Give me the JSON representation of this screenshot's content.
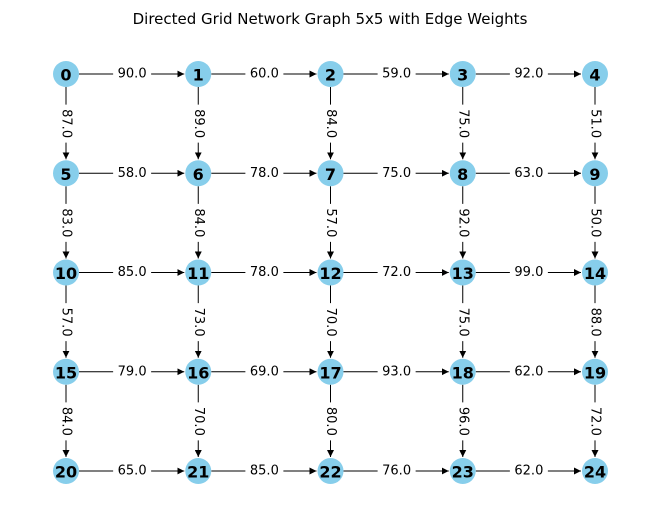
{
  "title": "Directed Grid Network Graph 5x5 with Edge Weights",
  "colors": {
    "node_fill": "#87ceeb",
    "edge": "#000000",
    "text": "#000000",
    "background": "#ffffff"
  },
  "grid": {
    "rows": 5,
    "cols": 5
  },
  "nodes": [
    {
      "id": "0",
      "row": 0,
      "col": 0
    },
    {
      "id": "1",
      "row": 0,
      "col": 1
    },
    {
      "id": "2",
      "row": 0,
      "col": 2
    },
    {
      "id": "3",
      "row": 0,
      "col": 3
    },
    {
      "id": "4",
      "row": 0,
      "col": 4
    },
    {
      "id": "5",
      "row": 1,
      "col": 0
    },
    {
      "id": "6",
      "row": 1,
      "col": 1
    },
    {
      "id": "7",
      "row": 1,
      "col": 2
    },
    {
      "id": "8",
      "row": 1,
      "col": 3
    },
    {
      "id": "9",
      "row": 1,
      "col": 4
    },
    {
      "id": "10",
      "row": 2,
      "col": 0
    },
    {
      "id": "11",
      "row": 2,
      "col": 1
    },
    {
      "id": "12",
      "row": 2,
      "col": 2
    },
    {
      "id": "13",
      "row": 2,
      "col": 3
    },
    {
      "id": "14",
      "row": 2,
      "col": 4
    },
    {
      "id": "15",
      "row": 3,
      "col": 0
    },
    {
      "id": "16",
      "row": 3,
      "col": 1
    },
    {
      "id": "17",
      "row": 3,
      "col": 2
    },
    {
      "id": "18",
      "row": 3,
      "col": 3
    },
    {
      "id": "19",
      "row": 3,
      "col": 4
    },
    {
      "id": "20",
      "row": 4,
      "col": 0
    },
    {
      "id": "21",
      "row": 4,
      "col": 1
    },
    {
      "id": "22",
      "row": 4,
      "col": 2
    },
    {
      "id": "23",
      "row": 4,
      "col": 3
    },
    {
      "id": "24",
      "row": 4,
      "col": 4
    }
  ],
  "edges": [
    {
      "from": "0",
      "to": "1",
      "weight": "90.0"
    },
    {
      "from": "1",
      "to": "2",
      "weight": "60.0"
    },
    {
      "from": "2",
      "to": "3",
      "weight": "59.0"
    },
    {
      "from": "3",
      "to": "4",
      "weight": "92.0"
    },
    {
      "from": "5",
      "to": "6",
      "weight": "58.0"
    },
    {
      "from": "6",
      "to": "7",
      "weight": "78.0"
    },
    {
      "from": "7",
      "to": "8",
      "weight": "75.0"
    },
    {
      "from": "8",
      "to": "9",
      "weight": "63.0"
    },
    {
      "from": "10",
      "to": "11",
      "weight": "85.0"
    },
    {
      "from": "11",
      "to": "12",
      "weight": "78.0"
    },
    {
      "from": "12",
      "to": "13",
      "weight": "72.0"
    },
    {
      "from": "13",
      "to": "14",
      "weight": "99.0"
    },
    {
      "from": "15",
      "to": "16",
      "weight": "79.0"
    },
    {
      "from": "16",
      "to": "17",
      "weight": "69.0"
    },
    {
      "from": "17",
      "to": "18",
      "weight": "93.0"
    },
    {
      "from": "18",
      "to": "19",
      "weight": "62.0"
    },
    {
      "from": "20",
      "to": "21",
      "weight": "65.0"
    },
    {
      "from": "21",
      "to": "22",
      "weight": "85.0"
    },
    {
      "from": "22",
      "to": "23",
      "weight": "76.0"
    },
    {
      "from": "23",
      "to": "24",
      "weight": "62.0"
    },
    {
      "from": "0",
      "to": "5",
      "weight": "87.0"
    },
    {
      "from": "5",
      "to": "10",
      "weight": "83.0"
    },
    {
      "from": "10",
      "to": "15",
      "weight": "57.0"
    },
    {
      "from": "15",
      "to": "20",
      "weight": "84.0"
    },
    {
      "from": "1",
      "to": "6",
      "weight": "89.0"
    },
    {
      "from": "6",
      "to": "11",
      "weight": "84.0"
    },
    {
      "from": "11",
      "to": "16",
      "weight": "73.0"
    },
    {
      "from": "16",
      "to": "21",
      "weight": "70.0"
    },
    {
      "from": "2",
      "to": "7",
      "weight": "84.0"
    },
    {
      "from": "7",
      "to": "12",
      "weight": "57.0"
    },
    {
      "from": "12",
      "to": "17",
      "weight": "70.0"
    },
    {
      "from": "17",
      "to": "22",
      "weight": "80.0"
    },
    {
      "from": "3",
      "to": "8",
      "weight": "75.0"
    },
    {
      "from": "8",
      "to": "13",
      "weight": "92.0"
    },
    {
      "from": "13",
      "to": "18",
      "weight": "75.0"
    },
    {
      "from": "18",
      "to": "23",
      "weight": "96.0"
    },
    {
      "from": "4",
      "to": "9",
      "weight": "51.0"
    },
    {
      "from": "9",
      "to": "14",
      "weight": "50.0"
    },
    {
      "from": "14",
      "to": "19",
      "weight": "88.0"
    },
    {
      "from": "19",
      "to": "24",
      "weight": "72.0"
    }
  ]
}
